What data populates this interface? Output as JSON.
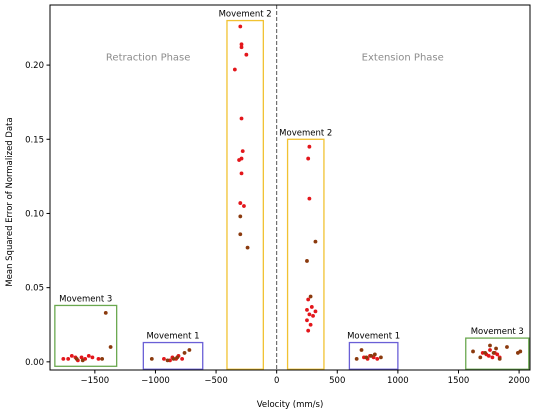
{
  "chart_data": {
    "type": "scatter",
    "xlabel": "Velocity (mm/s)",
    "ylabel": "Mean Squared Error of Normalized Data",
    "xlim": [
      -1870,
      2090
    ],
    "ylim": [
      -0.0055,
      0.2405
    ],
    "xticks": [
      -1500,
      -1000,
      -500,
      0,
      500,
      1000,
      1500,
      2000
    ],
    "xtick_labels": [
      "−1500",
      "−1000",
      "−500",
      "0",
      "500",
      "1000",
      "1500",
      "2000"
    ],
    "yticks": [
      0.0,
      0.05,
      0.1,
      0.15,
      0.2
    ],
    "ytick_labels": [
      "0.00",
      "0.05",
      "0.10",
      "0.15",
      "0.20"
    ],
    "grid": false,
    "divider_x": 0,
    "phases": [
      {
        "label": "Retraction Phase",
        "x": -1060,
        "y": 0.203
      },
      {
        "label": "Extension Phase",
        "x": 1040,
        "y": 0.203
      }
    ],
    "boxes": [
      {
        "label": "Movement 3",
        "x0": -1830,
        "x1": -1320,
        "y0": -0.003,
        "y1": 0.038,
        "color": "#6aa84f"
      },
      {
        "label": "Movement 1",
        "x0": -1100,
        "x1": -610,
        "y0": -0.005,
        "y1": 0.013,
        "color": "#6a5fd6"
      },
      {
        "label": "Movement 2",
        "x0": -410,
        "x1": -110,
        "y0": -0.005,
        "y1": 0.23,
        "color": "#f1c232"
      },
      {
        "label": "Movement 2",
        "x0": 90,
        "x1": 390,
        "y0": -0.005,
        "y1": 0.15,
        "color": "#f1c232"
      },
      {
        "label": "Movement 1",
        "x0": 600,
        "x1": 1000,
        "y0": -0.005,
        "y1": 0.013,
        "color": "#6a5fd6"
      },
      {
        "label": "Movement 3",
        "x0": 1560,
        "x1": 2080,
        "y0": -0.005,
        "y1": 0.016,
        "color": "#6aa84f"
      }
    ],
    "series": [
      {
        "color": "#e3161b",
        "points": [
          [
            -1760,
            0.002
          ],
          [
            -1720,
            0.002
          ],
          [
            -1690,
            0.004
          ],
          [
            -1660,
            0.003
          ],
          [
            -1640,
            0.001
          ],
          [
            -1610,
            0.003
          ],
          [
            -1580,
            0.002
          ],
          [
            -1550,
            0.004
          ],
          [
            -1520,
            0.003
          ],
          [
            -1470,
            0.002
          ],
          [
            -930,
            0.002
          ],
          [
            -880,
            0.001
          ],
          [
            -860,
            0.003
          ],
          [
            -830,
            0.002
          ],
          [
            -810,
            0.004
          ],
          [
            -780,
            0.002
          ],
          [
            -300,
            0.226
          ],
          [
            -290,
            0.214
          ],
          [
            -290,
            0.212
          ],
          [
            -250,
            0.207
          ],
          [
            -345,
            0.197
          ],
          [
            -290,
            0.164
          ],
          [
            -280,
            0.142
          ],
          [
            -310,
            0.136
          ],
          [
            -290,
            0.137
          ],
          [
            -290,
            0.127
          ],
          [
            -300,
            0.107
          ],
          [
            -270,
            0.105
          ],
          [
            270,
            0.145
          ],
          [
            260,
            0.137
          ],
          [
            270,
            0.11
          ],
          [
            260,
            0.042
          ],
          [
            290,
            0.037
          ],
          [
            250,
            0.035
          ],
          [
            320,
            0.034
          ],
          [
            270,
            0.032
          ],
          [
            300,
            0.031
          ],
          [
            250,
            0.028
          ],
          [
            280,
            0.025
          ],
          [
            260,
            0.021
          ],
          [
            720,
            0.003
          ],
          [
            750,
            0.002
          ],
          [
            770,
            0.004
          ],
          [
            800,
            0.003
          ],
          [
            830,
            0.002
          ],
          [
            1700,
            0.006
          ],
          [
            1730,
            0.005
          ],
          [
            1750,
            0.004
          ],
          [
            1760,
            0.008
          ],
          [
            1780,
            0.003
          ],
          [
            1800,
            0.006
          ],
          [
            1820,
            0.005
          ],
          [
            1840,
            0.003
          ]
        ]
      },
      {
        "color": "#8b3a0e",
        "points": [
          [
            -1410,
            0.033
          ],
          [
            -1370,
            0.01
          ],
          [
            -1650,
            0.002
          ],
          [
            -1600,
            0.001
          ],
          [
            -1440,
            0.002
          ],
          [
            -1030,
            0.002
          ],
          [
            -900,
            0.001
          ],
          [
            -850,
            0.002
          ],
          [
            -820,
            0.003
          ],
          [
            -760,
            0.006
          ],
          [
            -720,
            0.008
          ],
          [
            -300,
            0.098
          ],
          [
            -300,
            0.086
          ],
          [
            -240,
            0.077
          ],
          [
            320,
            0.081
          ],
          [
            250,
            0.068
          ],
          [
            280,
            0.044
          ],
          [
            660,
            0.002
          ],
          [
            700,
            0.008
          ],
          [
            740,
            0.003
          ],
          [
            780,
            0.004
          ],
          [
            810,
            0.005
          ],
          [
            860,
            0.003
          ],
          [
            1620,
            0.007
          ],
          [
            1680,
            0.003
          ],
          [
            1720,
            0.006
          ],
          [
            1760,
            0.011
          ],
          [
            1790,
            0.006
          ],
          [
            1810,
            0.009
          ],
          [
            1840,
            0.002
          ],
          [
            1900,
            0.01
          ],
          [
            1990,
            0.006
          ],
          [
            2010,
            0.007
          ]
        ]
      }
    ]
  }
}
